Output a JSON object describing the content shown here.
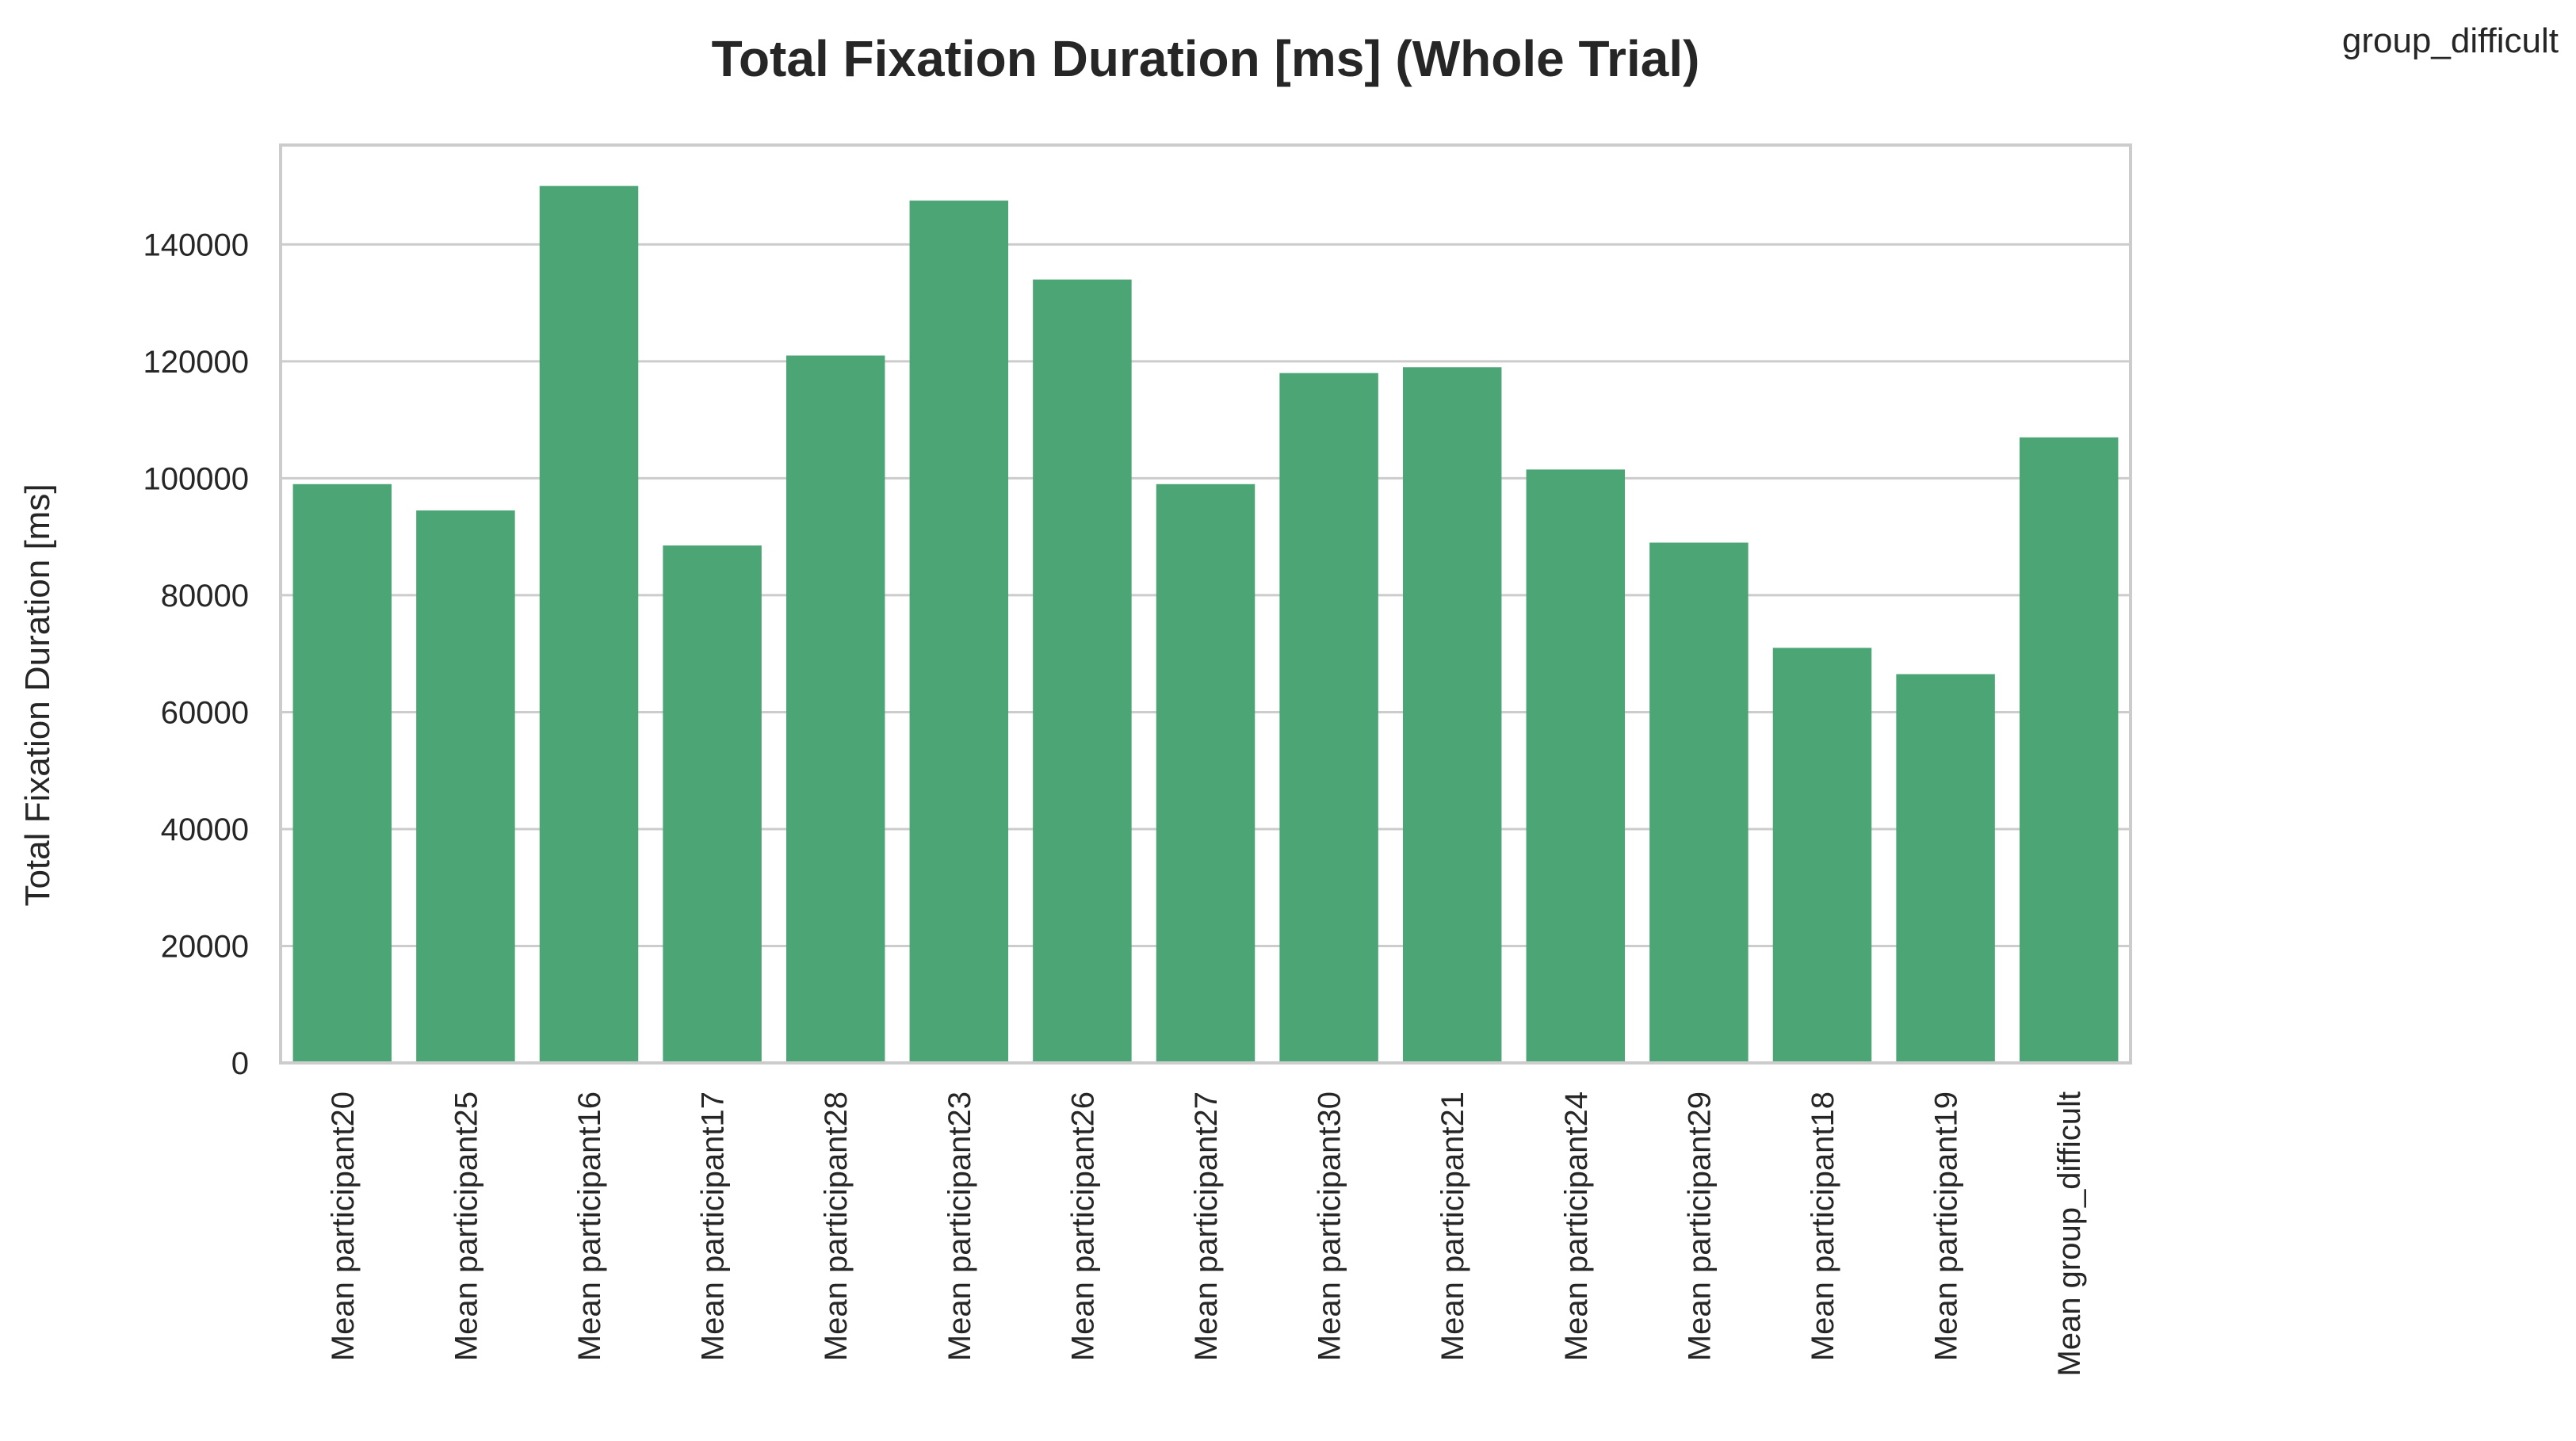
{
  "chart_data": {
    "type": "bar",
    "title": "Total Fixation Duration [ms] (Whole Trial)",
    "legend_title": "group_difficult",
    "legend_position": "top-right",
    "xlabel": "",
    "ylabel": "Total Fixation Duration [ms]",
    "ylim": [
      0,
      157000
    ],
    "yticks": [
      0,
      20000,
      40000,
      60000,
      80000,
      100000,
      120000,
      140000
    ],
    "grid": true,
    "bar_color": "#4ca574",
    "categories": [
      "Mean participant20",
      "Mean participant25",
      "Mean participant16",
      "Mean participant17",
      "Mean participant28",
      "Mean participant23",
      "Mean participant26",
      "Mean participant27",
      "Mean participant30",
      "Mean participant21",
      "Mean participant24",
      "Mean participant29",
      "Mean participant18",
      "Mean participant19",
      "Mean group_difficult"
    ],
    "values": [
      99000,
      94500,
      150000,
      88500,
      121000,
      147500,
      134000,
      99000,
      118000,
      119000,
      101500,
      89000,
      71000,
      66500,
      107000
    ]
  }
}
